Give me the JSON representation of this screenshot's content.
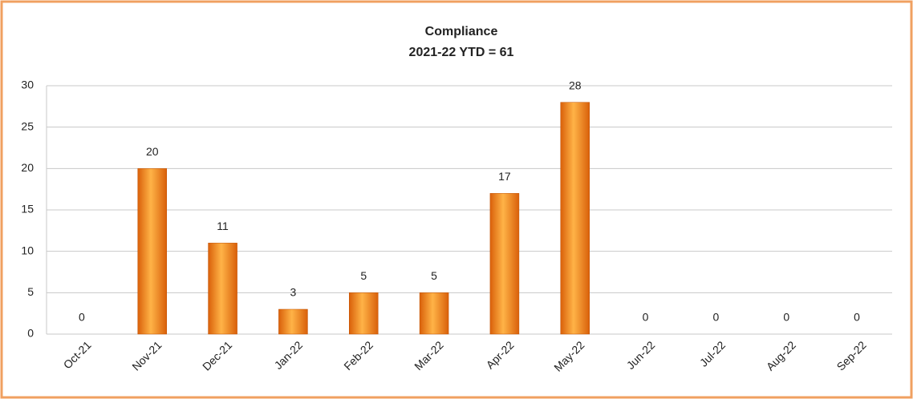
{
  "chart_data": {
    "type": "bar",
    "title": "Compliance",
    "subtitle": "2021-22 YTD = 61",
    "categories": [
      "Oct-21",
      "Nov-21",
      "Dec-21",
      "Jan-22",
      "Feb-22",
      "Mar-22",
      "Apr-22",
      "May-22",
      "Jun-22",
      "Jul-22",
      "Aug-22",
      "Sep-22"
    ],
    "values": [
      0,
      20,
      11,
      3,
      5,
      5,
      17,
      28,
      0,
      0,
      0,
      0
    ],
    "color": "#f7941d",
    "ylim": [
      0,
      30
    ],
    "yticks": [
      0,
      5,
      10,
      15,
      20,
      25,
      30
    ],
    "grid": true,
    "data_labels": true
  }
}
